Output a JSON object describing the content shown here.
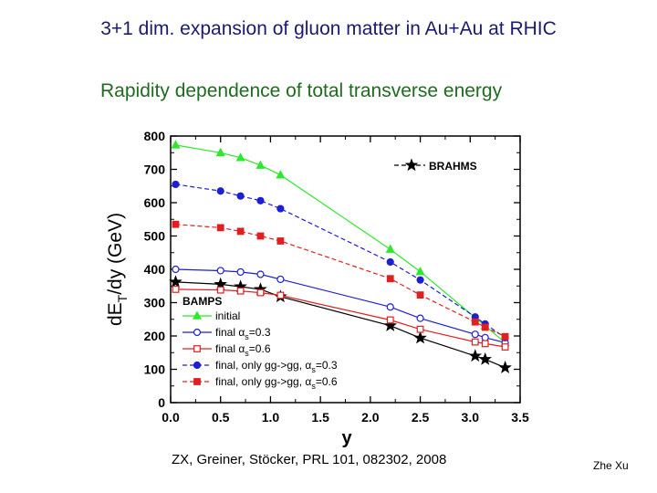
{
  "header": {
    "title": "3+1 dim. expansion of gluon matter in Au+Au at RHIC",
    "subtitle": "Rapidity dependence of total transverse energy"
  },
  "footer": {
    "citation": "ZX, Greiner, Stöcker, PRL 101, 082302, 2008",
    "author": "Zhe Xu"
  },
  "chart_data": {
    "type": "line",
    "xlabel": "y",
    "ylabel": "dE_T/dy (GeV)",
    "xlim": [
      0.0,
      3.5
    ],
    "ylim": [
      0,
      800
    ],
    "xticks": [
      "0.0",
      "0.5",
      "1.0",
      "1.5",
      "2.0",
      "2.5",
      "3.0",
      "3.5"
    ],
    "yticks": [
      "0",
      "100",
      "200",
      "300",
      "400",
      "500",
      "600",
      "700",
      "800"
    ],
    "legend_group_label": "BAMPS",
    "series": [
      {
        "name": "BRAHMS",
        "color": "#000000",
        "marker": "star",
        "dash": "solid",
        "filled": true,
        "x": [
          0.05,
          0.5,
          0.7,
          0.9,
          1.1,
          2.2,
          2.5,
          3.05,
          3.15,
          3.35
        ],
        "y": [
          362,
          355,
          348,
          340,
          318,
          231,
          194,
          140,
          130,
          105
        ]
      },
      {
        "name": "initial",
        "color": "#2ee82e",
        "marker": "triangle",
        "dash": "solid",
        "filled": true,
        "x": [
          0.05,
          0.5,
          0.7,
          0.9,
          1.1,
          2.2,
          2.5,
          3.05,
          3.15,
          3.35
        ],
        "y": [
          773,
          750,
          735,
          712,
          683,
          460,
          393,
          255,
          230,
          180
        ]
      },
      {
        "name": "final α_s=0.3",
        "color": "#1e1ed2",
        "marker": "circle",
        "dash": "solid",
        "filled": false,
        "x": [
          0.05,
          0.5,
          0.7,
          0.9,
          1.1,
          2.2,
          2.5,
          3.05,
          3.15,
          3.35
        ],
        "y": [
          400,
          396,
          392,
          385,
          370,
          287,
          253,
          205,
          195,
          180
        ]
      },
      {
        "name": "final α_s=0.6",
        "color": "#e02020",
        "marker": "square",
        "dash": "solid",
        "filled": false,
        "x": [
          0.05,
          0.5,
          0.7,
          0.9,
          1.1,
          2.2,
          2.5,
          3.05,
          3.15,
          3.35
        ],
        "y": [
          340,
          338,
          335,
          330,
          322,
          248,
          220,
          182,
          177,
          167
        ]
      },
      {
        "name": "final, only gg->gg, α_s=0.3",
        "color": "#1e1ed2",
        "marker": "circle",
        "dash": "dash",
        "filled": true,
        "x": [
          0.05,
          0.5,
          0.7,
          0.9,
          1.1,
          2.2,
          2.5,
          3.05,
          3.15,
          3.35
        ],
        "y": [
          655,
          635,
          620,
          606,
          582,
          422,
          368,
          257,
          236,
          195
        ]
      },
      {
        "name": "final, only gg->gg, α_s=0.6",
        "color": "#e02020",
        "marker": "square",
        "dash": "dash",
        "filled": true,
        "x": [
          0.05,
          0.5,
          0.7,
          0.9,
          1.1,
          2.2,
          2.5,
          3.05,
          3.15,
          3.35
        ],
        "y": [
          535,
          525,
          514,
          500,
          485,
          372,
          323,
          242,
          226,
          198
        ]
      }
    ]
  }
}
